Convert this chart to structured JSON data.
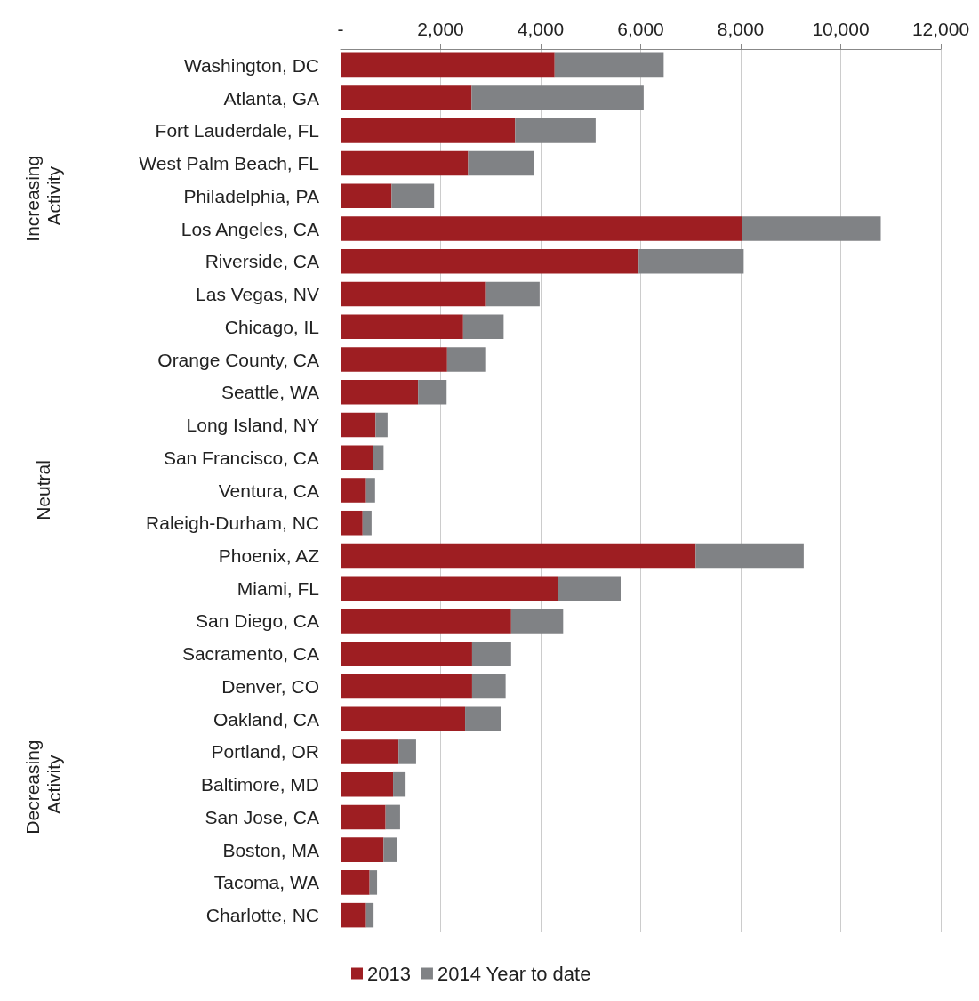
{
  "chart_data": {
    "type": "bar",
    "orientation": "horizontal",
    "stacked": true,
    "categories": [
      "Washington, DC",
      "Atlanta, GA",
      "Fort Lauderdale, FL",
      "West Palm Beach, FL",
      "Philadelphia, PA",
      "Los Angeles, CA",
      "Riverside, CA",
      "Las Vegas, NV",
      "Chicago, IL",
      "Orange County, CA",
      "Seattle, WA",
      "Long Island, NY",
      "San Francisco, CA",
      "Ventura, CA",
      "Raleigh-Durham, NC",
      "Phoenix, AZ",
      "Miami, FL",
      "San Diego, CA",
      "Sacramento, CA",
      "Denver, CO",
      "Oakland, CA",
      "Portland, OR",
      "Baltimore, MD",
      "San Jose, CA",
      "Boston, MA",
      "Tacoma, WA",
      "Charlotte, NC"
    ],
    "series": [
      {
        "name": "2013",
        "color": "#9e1e22",
        "values": [
          4280,
          2620,
          3490,
          2550,
          1020,
          8020,
          5960,
          2910,
          2450,
          2130,
          1550,
          700,
          650,
          510,
          440,
          7100,
          4340,
          3410,
          2630,
          2630,
          2490,
          1160,
          1050,
          900,
          860,
          580,
          510
        ]
      },
      {
        "name": "2014 Year to date",
        "color": "#808285",
        "values": [
          2180,
          3440,
          1610,
          1320,
          850,
          2780,
          2100,
          1070,
          810,
          780,
          570,
          240,
          210,
          180,
          180,
          2160,
          1260,
          1040,
          780,
          670,
          710,
          350,
          250,
          290,
          260,
          150,
          150
        ]
      }
    ],
    "xlim": [
      0,
      12000
    ],
    "xticks": [
      {
        "value": 0,
        "label": "-"
      },
      {
        "value": 2000,
        "label": "2,000"
      },
      {
        "value": 4000,
        "label": "4,000"
      },
      {
        "value": 6000,
        "label": "6,000"
      },
      {
        "value": 8000,
        "label": "8,000"
      },
      {
        "value": 10000,
        "label": "10,000"
      },
      {
        "value": 12000,
        "label": "12,000"
      }
    ],
    "grid": "x",
    "legend": "bottom",
    "annotations": [
      "Increasing Activity",
      "Neutral",
      "Decreasing Activity"
    ]
  }
}
